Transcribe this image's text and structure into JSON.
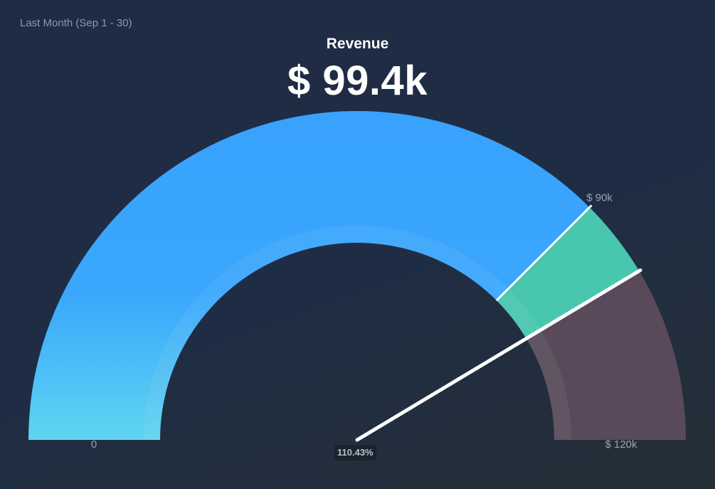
{
  "header": {
    "period": "Last Month (Sep 1 - 30)",
    "title": "Revenue",
    "value": "$ 99.4k"
  },
  "chart_data": {
    "type": "gauge",
    "title": "Revenue",
    "value": 99400,
    "value_label": "$ 99.4k",
    "min": 0,
    "max": 120000,
    "min_label": "0",
    "max_label": "$ 120k",
    "target": 90000,
    "target_label": "$ 90k",
    "pointer_value": 110.43,
    "pointer_label": "110.43%",
    "pointer_max_percent": 133.33,
    "segments": [
      {
        "from": 0,
        "to": 90000,
        "colors": [
          "#38a2fd",
          "#5bd3ef"
        ]
      },
      {
        "from": 90000,
        "to": 99400,
        "colors": [
          "#48c6ae"
        ]
      },
      {
        "from": 99400,
        "to": 120000,
        "colors": [
          "#584a5a"
        ]
      }
    ]
  }
}
